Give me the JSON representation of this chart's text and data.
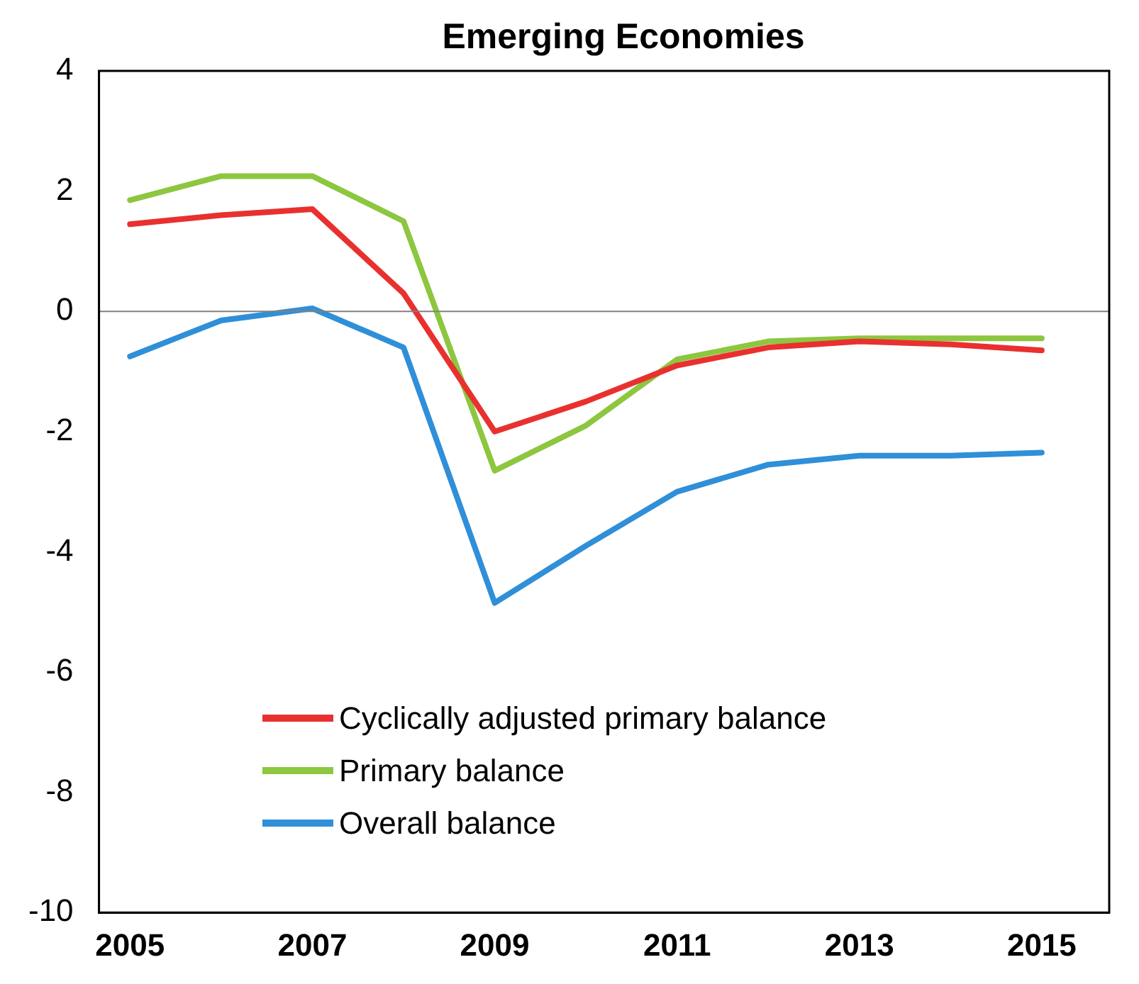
{
  "chart_data": {
    "type": "line",
    "title": "Emerging Economies",
    "x": [
      2005,
      2006,
      2007,
      2008,
      2009,
      2010,
      2011,
      2012,
      2013,
      2014,
      2015
    ],
    "series": [
      {
        "name": "Cyclically adjusted primary balance",
        "color": "#e8312f",
        "values": [
          1.45,
          1.6,
          1.7,
          0.3,
          -2.0,
          -1.5,
          -0.9,
          -0.6,
          -0.5,
          -0.55,
          -0.65
        ]
      },
      {
        "name": "Primary balance",
        "color": "#8dc63f",
        "values": [
          1.85,
          2.25,
          2.25,
          1.5,
          -2.65,
          -1.9,
          -0.8,
          -0.5,
          -0.45,
          -0.45,
          -0.45
        ]
      },
      {
        "name": "Overall balance",
        "color": "#2f8fd8",
        "values": [
          -0.75,
          -0.15,
          0.05,
          -0.6,
          -4.85,
          -3.9,
          -3.0,
          -2.55,
          -2.4,
          -2.4,
          -2.35
        ]
      }
    ],
    "xlim": [
      2004.66,
      2015.74
    ],
    "xticks": [
      2005,
      2007,
      2009,
      2011,
      2013,
      2015
    ],
    "ylim": [
      -10,
      4
    ],
    "yticks": [
      -10,
      -8,
      -6,
      -4,
      -2,
      0,
      2,
      4
    ],
    "ref_lines": [
      {
        "axis": "y",
        "value": 0,
        "color": "#808080"
      }
    ],
    "grid": false,
    "legend": "bottom left",
    "marker": "none",
    "line_style": "solid"
  }
}
